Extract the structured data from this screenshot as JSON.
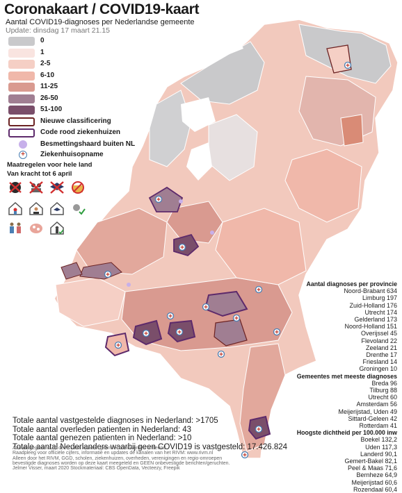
{
  "header": {
    "title": "Coronakaart / COVID19-kaart",
    "subtitle": "Aantal COVID19-diagnoses per Nederlandse gemeente",
    "update": "Update: dinsdag 17 maart 21.15"
  },
  "legend": {
    "classes": [
      {
        "label": "0",
        "color": "#c9c9cb"
      },
      {
        "label": "1",
        "color": "#f9e4e0"
      },
      {
        "label": "2-5",
        "color": "#f5cfc5"
      },
      {
        "label": "6-10",
        "color": "#f0b8aa"
      },
      {
        "label": "11-25",
        "color": "#d99a90"
      },
      {
        "label": "26-50",
        "color": "#a07e92"
      },
      {
        "label": "51-100",
        "color": "#7a4e6a"
      }
    ],
    "new_classification": "Nieuwe classificering",
    "code_red": "Code rood ziekenhuizen",
    "infection_source": "Besmettingshaard buiten NL",
    "hospital": "Ziekenhuisopname",
    "colors": {
      "outline_new": "#6b2222",
      "outline_red": "#5d2a6b",
      "source_dot": "#c7b0ea",
      "hospital_ring": "#4b7fb3",
      "hospital_cross": "#c0392b"
    }
  },
  "measures": {
    "line1": "Maatregelen voor hele land",
    "line2": "Van kracht tot 6 april",
    "icons": [
      "no-handshake-icon",
      "no-gathering-icon",
      "school-closed-icon",
      "no-food-service-icon",
      "stay-home-icon",
      "work-from-home-icon",
      "study-from-home-icon",
      "sick-stay-home-icon",
      "family-icon",
      "hygiene-icon",
      "keep-distance-icon"
    ]
  },
  "province": {
    "heading": "Aantal diagnoses per provincie",
    "items": [
      "Noord-Brabant 634",
      "Limburg 197",
      "Zuid-Holland 176",
      "Utrecht 174",
      "Gelderland 173",
      "Noord-Holland 151",
      "Overijssel 45",
      "Flevoland 22",
      "Zeeland 21",
      "Drenthe 17",
      "Friesland  14",
      "Groningen 10"
    ]
  },
  "municipalities": {
    "heading": "Gemeentes met meeste diagnoses",
    "items": [
      "Breda 96",
      "Tilburg 88",
      "Utrecht 60",
      "Amsterdam 56",
      "Meijerijstad, Uden 49",
      "Sittard-Geleen 42",
      "Rotterdam 41"
    ]
  },
  "density": {
    "heading": "Hoogste dichtheid per 100.000 inw",
    "items": [
      "Boekel 132,2",
      "Uden 117,3",
      "Landerd 90,1",
      "Gemert-Bakel 82,1",
      "Peel & Maas 71,6",
      "Bernheze 64,9",
      "Meijerijstad 60,6",
      "Rozendaal 60,4"
    ]
  },
  "totals": {
    "diagnoses": "Totale aantal vastgestelde diagnoses in Nederland: >1705",
    "deaths": "Totale aantal overleden patienten in Nederland: 43",
    "recovered": "Totale aantal genezen patienten in Nederland: >10",
    "no_covid": "Totale aantal Nederlanders waarbij geen COVID19 is vastgesteld: 17.426.824"
  },
  "disclaimer": {
    "line1": "Aan de gegevens op deze kaart kunnen geen rechten worden ontleend.",
    "line2": "Raadpleeg voor officiële cijfers, informatie en updates de kanalen van het RIVM: www.rivm.nl",
    "line3": "Alleen door het RIVM, GGD, scholen, ziekenhuizen, overheden, verenigingen en regio-omroepen",
    "line4": "bevestigde diagnoses worden op deze kaart meegeteld en GEEN onbevestigde berichten/geruchten.",
    "line5": "Jelmer Visser, maart 2020 Stockmateriaal: CBS OpenData, Vecteezy, Freepik"
  }
}
